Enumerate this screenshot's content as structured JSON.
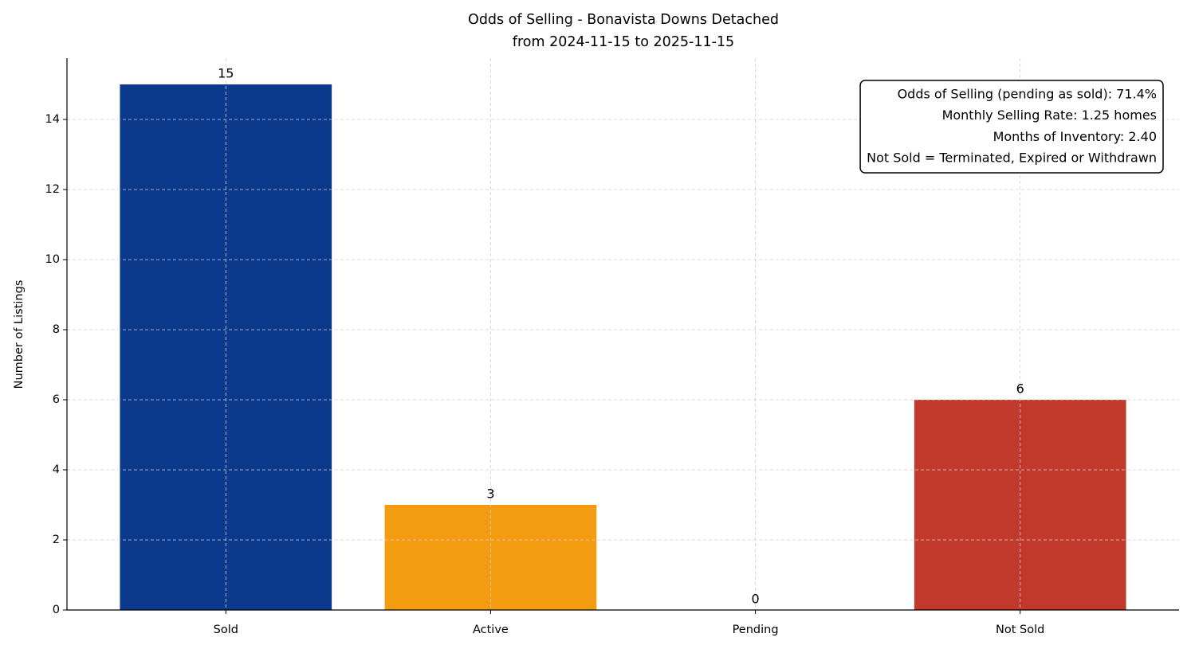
{
  "chart_data": {
    "type": "bar",
    "title": "Odds of Selling - Bonavista Downs Detached",
    "subtitle": "from 2024-11-15 to 2025-11-15",
    "y_label": "Number of Listings",
    "categories": [
      "Sold",
      "Active",
      "Pending",
      "Not Sold"
    ],
    "values": [
      15,
      3,
      0,
      6
    ],
    "colors": [
      "#0b3a8d",
      "#f39c12",
      "#2a9d3a",
      "#c0392b"
    ],
    "ylim": [
      0,
      15.75
    ],
    "yticks": [
      0,
      2,
      4,
      6,
      8,
      10,
      12,
      14
    ],
    "grid": true,
    "legend_position": "upper right",
    "annotation": [
      "Odds of Selling (pending as sold): 71.4%",
      "Monthly Selling Rate: 1.25 homes",
      "Months of Inventory: 2.40",
      "Not Sold = Terminated, Expired or Withdrawn"
    ]
  }
}
